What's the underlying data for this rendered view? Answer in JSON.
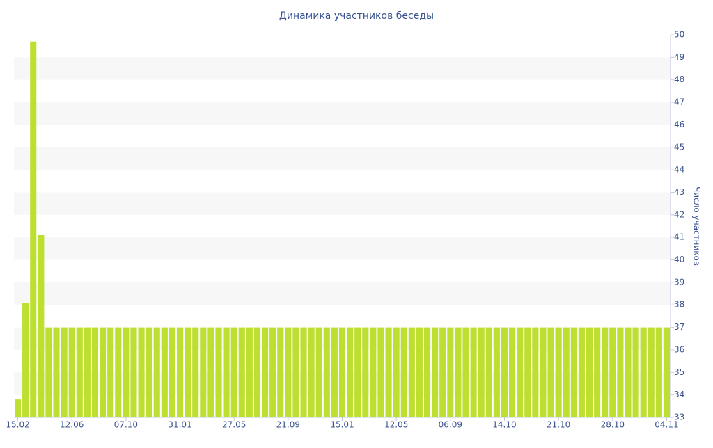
{
  "chart_data": {
    "type": "bar",
    "title": "Динамика участников беседы",
    "y_axis_label": "Число участников",
    "categories": [
      "15.02",
      null,
      null,
      null,
      null,
      null,
      null,
      "12.06",
      null,
      null,
      null,
      null,
      null,
      null,
      "07.10",
      null,
      null,
      null,
      null,
      null,
      null,
      "31.01",
      null,
      null,
      null,
      null,
      null,
      null,
      "27.05",
      null,
      null,
      null,
      null,
      null,
      null,
      "21.09",
      null,
      null,
      null,
      null,
      null,
      null,
      "15.01",
      null,
      null,
      null,
      null,
      null,
      null,
      "12.05",
      null,
      null,
      null,
      null,
      null,
      null,
      "06.09",
      null,
      null,
      null,
      null,
      null,
      null,
      "14.10",
      null,
      null,
      null,
      null,
      null,
      null,
      "21.10",
      null,
      null,
      null,
      null,
      null,
      null,
      "28.10",
      null,
      null,
      null,
      null,
      null,
      null,
      "04.11"
    ],
    "values": [
      33.8,
      38.1,
      49.7,
      41.1,
      37,
      37,
      37,
      37,
      37,
      37,
      37,
      37,
      37,
      37,
      37,
      37,
      37,
      37,
      37,
      37,
      37,
      37,
      37,
      37,
      37,
      37,
      37,
      37,
      37,
      37,
      37,
      37,
      37,
      37,
      37,
      37,
      37,
      37,
      37,
      37,
      37,
      37,
      37,
      37,
      37,
      37,
      37,
      37,
      37,
      37,
      37,
      37,
      37,
      37,
      37,
      37,
      37,
      37,
      37,
      37,
      37,
      37,
      37,
      37,
      37,
      37,
      37,
      37,
      37,
      37,
      37,
      37,
      37,
      37,
      37,
      37,
      37,
      37,
      37,
      37,
      37,
      37,
      37,
      37,
      37
    ],
    "color": "#bde030",
    "ylim": [
      33,
      50
    ],
    "yticks": [
      33,
      34,
      35,
      36,
      37,
      38,
      39,
      40,
      41,
      42,
      43,
      44,
      45,
      46,
      47,
      48,
      49,
      50
    ],
    "y_axis_side": "right",
    "grid_bands": true
  }
}
